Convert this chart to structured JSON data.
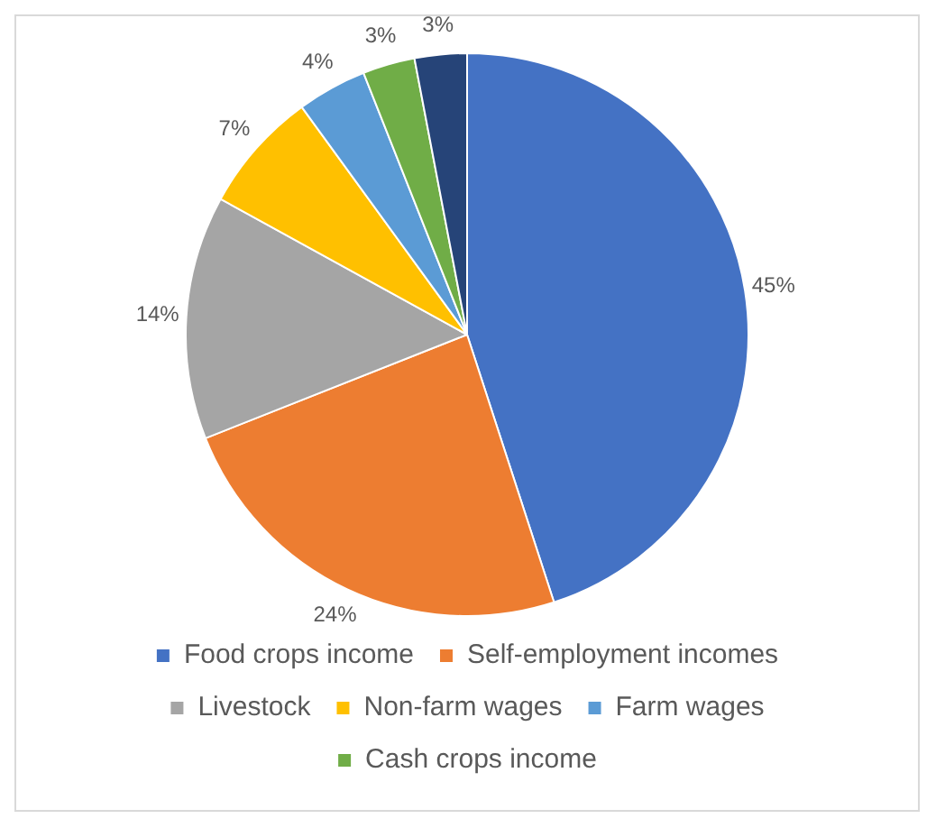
{
  "chart_data": {
    "type": "pie",
    "categories": [
      "Food crops income",
      "Self-employment incomes",
      "Livestock",
      "Non-farm wages",
      "Farm wages",
      "Cash crops income",
      null
    ],
    "values": [
      45,
      24,
      14,
      7,
      4,
      3,
      3
    ],
    "value_labels": [
      "45%",
      "24%",
      "14%",
      "7%",
      "4%",
      "3%",
      "3%"
    ],
    "colors": [
      "#4472c4",
      "#ed7d31",
      "#a5a5a5",
      "#ffc000",
      "#5b9bd5",
      "#70ad47",
      "#264478"
    ],
    "legend": "bottom"
  }
}
